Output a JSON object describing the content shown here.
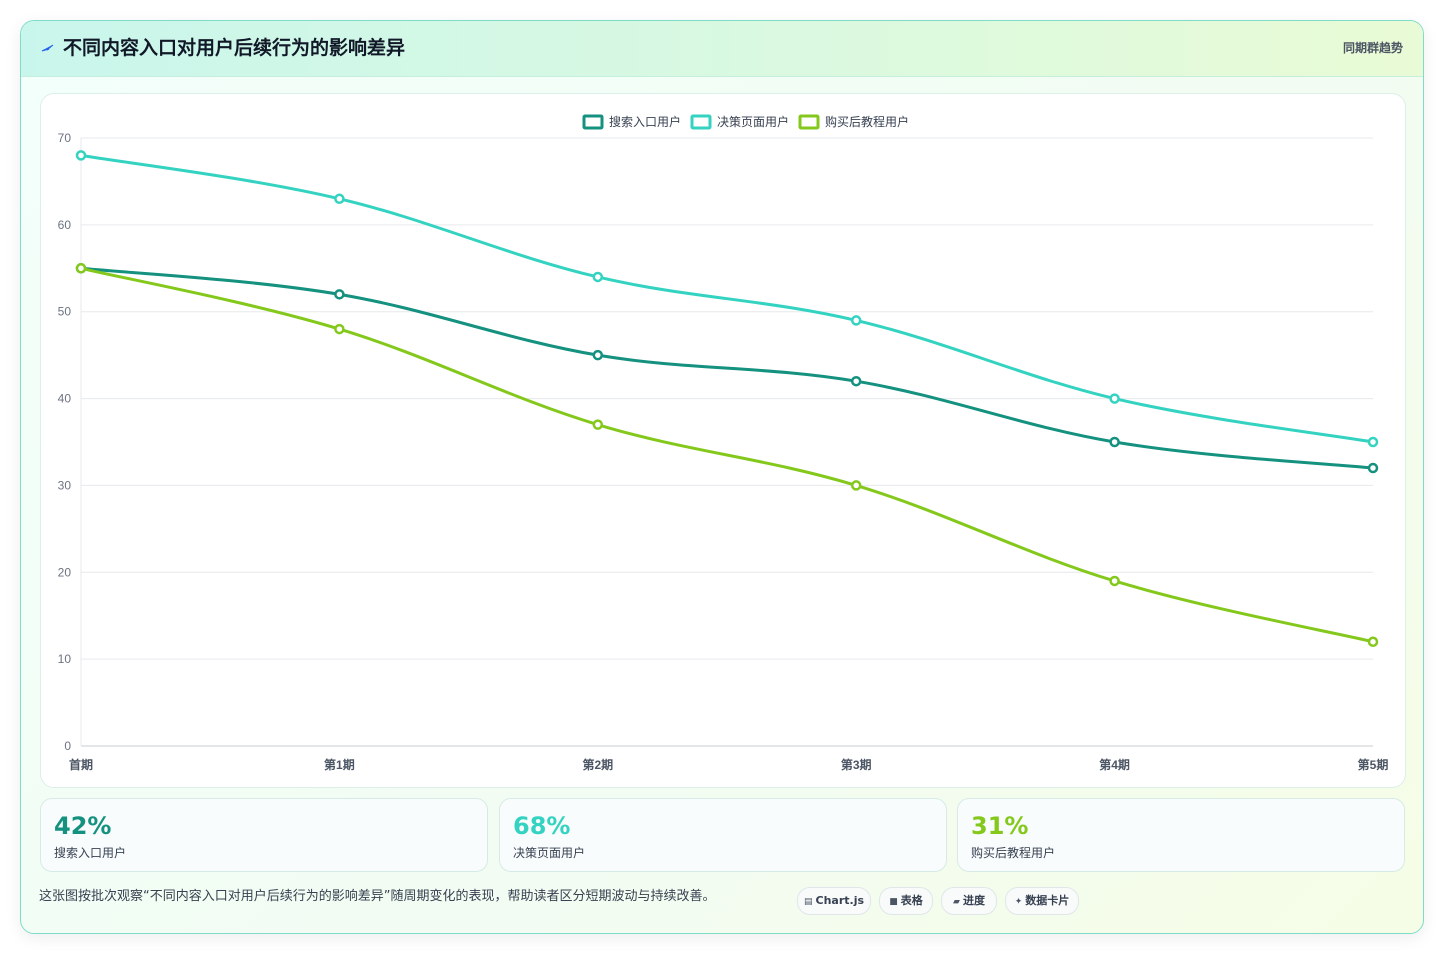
{
  "header": {
    "icon": "lightning-icon",
    "title": "不同内容入口对用户后续行为的影响差异",
    "right_label": "同期群趋势"
  },
  "chart_data": {
    "type": "line",
    "categories": [
      "首期",
      "第1期",
      "第2期",
      "第3期",
      "第4期",
      "第5期"
    ],
    "series": [
      {
        "name": "搜索入口用户",
        "values": [
          55,
          52,
          45,
          42,
          35,
          32
        ],
        "color": "#14917f"
      },
      {
        "name": "决策页面用户",
        "values": [
          68,
          63,
          54,
          49,
          40,
          35
        ],
        "color": "#34d3c1"
      },
      {
        "name": "购买后教程用户",
        "values": [
          55,
          48,
          37,
          30,
          19,
          12
        ],
        "color": "#84c81c"
      }
    ],
    "ylim": [
      0,
      70
    ],
    "yticks": [
      "0",
      "10",
      "20",
      "30",
      "40",
      "50",
      "60",
      "70"
    ],
    "grid": true,
    "legend": "top-center"
  },
  "stats": [
    {
      "value": "42%",
      "label": "搜索入口用户",
      "color": "#14917f"
    },
    {
      "value": "68%",
      "label": "决策页面用户",
      "color": "#34d3c1"
    },
    {
      "value": "31%",
      "label": "购买后教程用户",
      "color": "#84c81c"
    }
  ],
  "footnote": "这张图按批次观察“不同内容入口对用户后续行为的影响差异”随周期变化的表现，帮助读者区分短期波动与持续改善。",
  "pills": [
    {
      "icon": "chart-icon",
      "label": "Chart.js"
    },
    {
      "icon": "table-icon",
      "label": "表格"
    },
    {
      "icon": "progress-icon",
      "label": "进度"
    },
    {
      "icon": "sparkle-icon",
      "label": "数据卡片"
    }
  ]
}
